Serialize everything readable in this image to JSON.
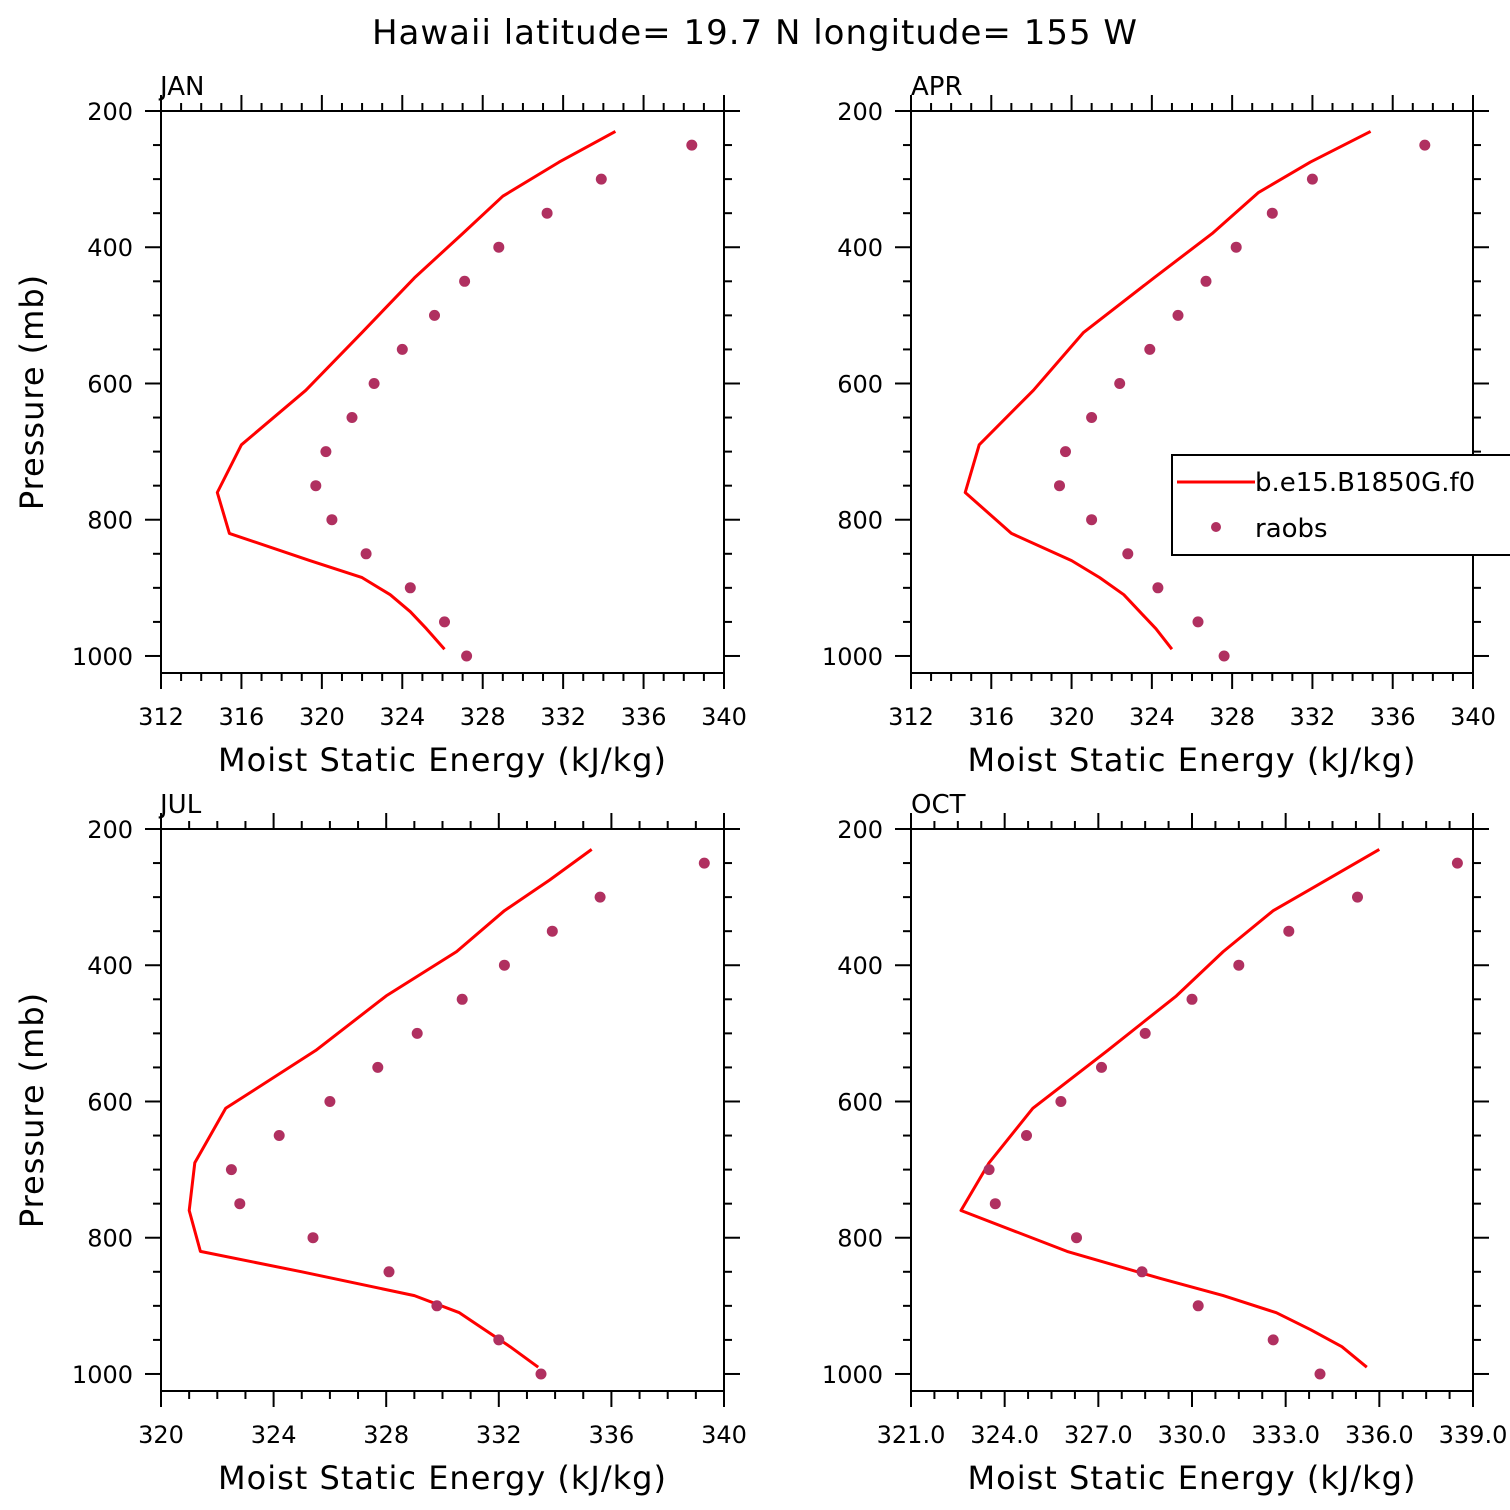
{
  "title": "Hawaii  latitude= 19.7 N longitude= 155 W",
  "colors": {
    "model": "#ff0000",
    "obs": "#b03060"
  },
  "legend": {
    "model_label": "b.e15.B1850G.f0",
    "obs_label": "raobs"
  },
  "chart_data": [
    {
      "type": "line",
      "panel": "JAN",
      "xlabel": "Moist Static Energy (kJ/kg)",
      "ylabel": "Pressure (mb)",
      "xlim": [
        312,
        340
      ],
      "ylim": [
        1000,
        200
      ],
      "xticks": [
        312,
        316,
        320,
        324,
        328,
        332,
        336,
        340
      ],
      "xtick_labels": [
        "312",
        "316",
        "320",
        "324",
        "328",
        "332",
        "336",
        "340"
      ],
      "yticks": [
        200,
        400,
        600,
        800,
        1000
      ],
      "ytick_labels": [
        "200",
        "400",
        "600",
        "800",
        "1000"
      ],
      "series": [
        {
          "kind": "line",
          "pressure": [
            230,
            275,
            325,
            380,
            445,
            525,
            610,
            690,
            760,
            820,
            860,
            885,
            910,
            935,
            960,
            990
          ],
          "mse": [
            334.6,
            331.8,
            329.0,
            327.0,
            324.6,
            322.0,
            319.2,
            316.0,
            314.8,
            315.4,
            319.4,
            322.0,
            323.4,
            324.4,
            325.2,
            326.1
          ]
        },
        {
          "kind": "scatter",
          "pressure": [
            250,
            300,
            350,
            400,
            450,
            500,
            550,
            600,
            650,
            700,
            750,
            800,
            850,
            900,
            950,
            1000
          ],
          "mse": [
            338.4,
            333.9,
            331.2,
            328.8,
            327.1,
            325.6,
            324.0,
            322.6,
            321.5,
            320.2,
            319.7,
            320.5,
            322.2,
            324.4,
            326.1,
            327.2
          ]
        }
      ]
    },
    {
      "type": "line",
      "panel": "APR",
      "xlabel": "Moist Static Energy (kJ/kg)",
      "ylabel": "",
      "xlim": [
        312,
        340
      ],
      "ylim": [
        1000,
        200
      ],
      "xticks": [
        312,
        316,
        320,
        324,
        328,
        332,
        336,
        340
      ],
      "xtick_labels": [
        "312",
        "316",
        "320",
        "324",
        "328",
        "332",
        "336",
        "340"
      ],
      "yticks": [
        200,
        400,
        600,
        800,
        1000
      ],
      "ytick_labels": [
        "200",
        "400",
        "600",
        "800",
        "1000"
      ],
      "legend": true,
      "series": [
        {
          "kind": "line",
          "pressure": [
            230,
            275,
            320,
            380,
            445,
            525,
            610,
            690,
            760,
            820,
            860,
            885,
            910,
            935,
            960,
            990
          ],
          "mse": [
            334.9,
            331.9,
            329.3,
            327.0,
            324.1,
            320.6,
            318.1,
            315.4,
            314.7,
            317.0,
            320.0,
            321.4,
            322.6,
            323.4,
            324.2,
            325.0
          ]
        },
        {
          "kind": "scatter",
          "pressure": [
            250,
            300,
            350,
            400,
            450,
            500,
            550,
            600,
            650,
            700,
            750,
            800,
            850,
            900,
            950,
            1000
          ],
          "mse": [
            337.6,
            332.0,
            330.0,
            328.2,
            326.7,
            325.3,
            323.9,
            322.4,
            321.0,
            319.7,
            319.4,
            321.0,
            322.8,
            324.3,
            326.3,
            327.6
          ]
        }
      ]
    },
    {
      "type": "line",
      "panel": "JUL",
      "xlabel": "Moist Static Energy (kJ/kg)",
      "ylabel": "Pressure (mb)",
      "xlim": [
        320,
        340
      ],
      "ylim": [
        1000,
        200
      ],
      "xticks": [
        320,
        324,
        328,
        332,
        336,
        340
      ],
      "xtick_labels": [
        "320",
        "324",
        "328",
        "332",
        "336",
        "340"
      ],
      "yticks": [
        200,
        400,
        600,
        800,
        1000
      ],
      "ytick_labels": [
        "200",
        "400",
        "600",
        "800",
        "1000"
      ],
      "series": [
        {
          "kind": "line",
          "pressure": [
            230,
            275,
            320,
            380,
            445,
            525,
            610,
            690,
            760,
            820,
            850,
            885,
            910,
            935,
            960,
            990
          ],
          "mse": [
            335.3,
            333.8,
            332.2,
            330.5,
            328.0,
            325.5,
            322.3,
            321.2,
            321.0,
            321.4,
            325.0,
            329.0,
            330.6,
            331.5,
            332.4,
            333.4
          ]
        },
        {
          "kind": "scatter",
          "pressure": [
            250,
            300,
            350,
            400,
            450,
            500,
            550,
            600,
            650,
            700,
            750,
            800,
            850,
            900,
            950,
            1000
          ],
          "mse": [
            339.3,
            335.6,
            333.9,
            332.2,
            330.7,
            329.1,
            327.7,
            326.0,
            324.2,
            322.5,
            322.8,
            325.4,
            328.1,
            329.8,
            332.0,
            333.5
          ]
        }
      ]
    },
    {
      "type": "line",
      "panel": "OCT",
      "xlabel": "Moist Static Energy (kJ/kg)",
      "ylabel": "",
      "xlim": [
        321,
        339
      ],
      "ylim": [
        1000,
        200
      ],
      "xticks": [
        321,
        324,
        327,
        330,
        333,
        336,
        339
      ],
      "xtick_labels": [
        "321.0",
        "324.0",
        "327.0",
        "330.0",
        "333.0",
        "336.0",
        "339.0"
      ],
      "yticks": [
        200,
        400,
        600,
        800,
        1000
      ],
      "ytick_labels": [
        "200",
        "400",
        "600",
        "800",
        "1000"
      ],
      "series": [
        {
          "kind": "line",
          "pressure": [
            230,
            275,
            320,
            380,
            445,
            525,
            610,
            690,
            760,
            820,
            860,
            885,
            910,
            935,
            960,
            990
          ],
          "mse": [
            336.0,
            334.3,
            332.6,
            331.0,
            329.5,
            327.3,
            324.9,
            323.5,
            322.6,
            326.0,
            329.0,
            331.0,
            332.7,
            333.8,
            334.8,
            335.6
          ]
        },
        {
          "kind": "scatter",
          "pressure": [
            250,
            300,
            350,
            400,
            450,
            500,
            550,
            600,
            650,
            700,
            750,
            800,
            850,
            900,
            950,
            1000
          ],
          "mse": [
            338.5,
            335.3,
            333.1,
            331.5,
            330.0,
            328.5,
            327.1,
            325.8,
            324.7,
            323.5,
            323.7,
            326.3,
            328.4,
            330.2,
            332.6,
            334.1
          ]
        }
      ]
    }
  ]
}
